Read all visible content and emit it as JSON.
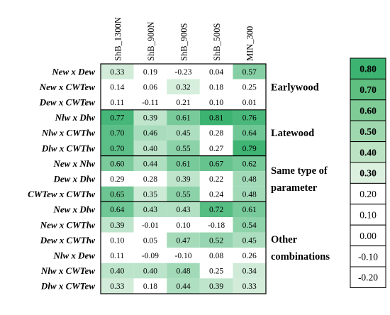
{
  "chart_data": {
    "type": "heatmap",
    "columns": [
      "ShB_1300N",
      "ShB_900N",
      "ShB_900S",
      "ShB_500S",
      "MIN_300"
    ],
    "rows": [
      "New x Dew",
      "New x CWTew",
      "Dew x CWTew",
      "Nlw x Dlw",
      "Nlw x CWTlw",
      "Dlw x CWTlw",
      "New x Nlw",
      "Dew x Dlw",
      "CWTew x CWTlw",
      "New x Dlw",
      "New x CWTlw",
      "Dew x CWTlw",
      "Nlw x Dew",
      "Nlw x CWTew",
      "Dlw x CWTew"
    ],
    "values": [
      [
        0.33,
        0.19,
        -0.23,
        0.04,
        0.57
      ],
      [
        0.14,
        0.06,
        0.32,
        0.18,
        0.25
      ],
      [
        0.11,
        -0.11,
        0.21,
        0.1,
        0.01
      ],
      [
        0.77,
        0.39,
        0.61,
        0.81,
        0.76
      ],
      [
        0.7,
        0.46,
        0.45,
        0.28,
        0.64
      ],
      [
        0.7,
        0.4,
        0.55,
        0.27,
        0.79
      ],
      [
        0.6,
        0.44,
        0.61,
        0.67,
        0.62
      ],
      [
        0.29,
        0.28,
        0.39,
        0.22,
        0.48
      ],
      [
        0.65,
        0.35,
        0.55,
        0.24,
        0.48
      ],
      [
        0.64,
        0.43,
        0.43,
        0.72,
        0.61
      ],
      [
        0.39,
        -0.01,
        0.1,
        -0.18,
        0.54
      ],
      [
        0.1,
        0.05,
        0.47,
        0.52,
        0.45
      ],
      [
        0.11,
        -0.09,
        -0.1,
        0.08,
        0.26
      ],
      [
        0.4,
        0.4,
        0.48,
        0.25,
        0.34
      ],
      [
        0.33,
        0.18,
        0.44,
        0.39,
        0.33
      ]
    ],
    "groups": [
      {
        "label_lines": [
          "Earlywood"
        ],
        "row_start": 0,
        "row_end": 2
      },
      {
        "label_lines": [
          "Latewood"
        ],
        "row_start": 3,
        "row_end": 5
      },
      {
        "label_lines": [
          "Same type of",
          "parameter"
        ],
        "row_start": 6,
        "row_end": 8
      },
      {
        "label_lines": [
          "Other",
          "combinations"
        ],
        "row_start": 9,
        "row_end": 14
      }
    ],
    "color_scale": [
      {
        "value": 0.8,
        "label": "0.80",
        "color": "#3cb371"
      },
      {
        "value": 0.7,
        "label": "0.70",
        "color": "#5ebf80"
      },
      {
        "value": 0.6,
        "label": "0.60",
        "color": "#7fcc97"
      },
      {
        "value": 0.5,
        "label": "0.50",
        "color": "#9fd8ae"
      },
      {
        "value": 0.4,
        "label": "0.40",
        "color": "#bde3c5"
      },
      {
        "value": 0.3,
        "label": "0.30",
        "color": "#dcf0e0"
      },
      {
        "value": 0.2,
        "label": "0.20",
        "color": "#ffffff"
      },
      {
        "value": 0.1,
        "label": "0.10",
        "color": "#ffffff"
      },
      {
        "value": 0.0,
        "label": "0.00",
        "color": "#ffffff"
      },
      {
        "value": -0.1,
        "label": "-0.10",
        "color": "#ffffff"
      },
      {
        "value": -0.2,
        "label": "-0.20",
        "color": "#ffffff"
      }
    ],
    "colors": {
      "threshold_white": 0.3,
      "high_color": "#3cb371",
      "low_color": "#dcf0e0",
      "border": "#000000"
    }
  }
}
